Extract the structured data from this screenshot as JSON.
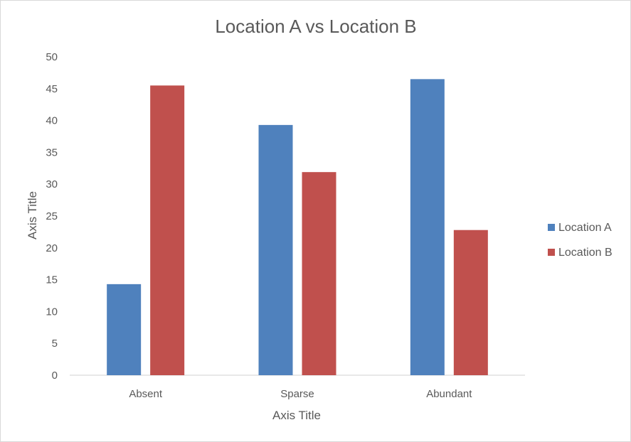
{
  "chart_data": {
    "type": "bar",
    "title": "Location A vs Location B",
    "xlabel": "Axis Title",
    "ylabel": "Axis Title",
    "categories": [
      "Absent",
      "Sparse",
      "Abundant"
    ],
    "series": [
      {
        "name": "Location A",
        "values": [
          14.3,
          39.3,
          46.5
        ],
        "color": "#4f81bd"
      },
      {
        "name": "Location B",
        "values": [
          45.5,
          31.9,
          22.8
        ],
        "color": "#c0504d"
      }
    ],
    "ylim": [
      0,
      50
    ],
    "yticks": [
      0,
      5,
      10,
      15,
      20,
      25,
      30,
      35,
      40,
      45,
      50
    ],
    "grid": false,
    "legend_position": "right"
  }
}
